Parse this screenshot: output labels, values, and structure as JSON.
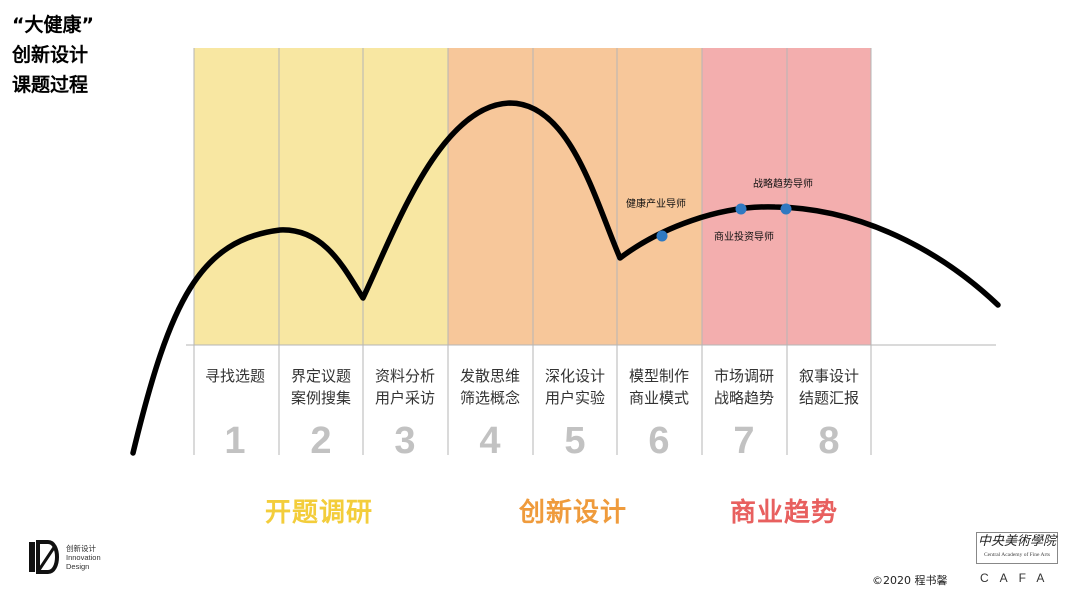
{
  "title": {
    "lines": [
      "“大健康”",
      "创新设计",
      "课题过程"
    ]
  },
  "colors": {
    "yellow": "#f8e7a2",
    "orange": "#f7c79a",
    "pink": "#f3aeae"
  },
  "steps": [
    {
      "number": "1",
      "line1": "寻找选题",
      "line2": ""
    },
    {
      "number": "2",
      "line1": "界定议题",
      "line2": "案例搜集"
    },
    {
      "number": "3",
      "line1": "资料分析",
      "line2": "用户采访"
    },
    {
      "number": "4",
      "line1": "发散思维",
      "line2": "筛选概念"
    },
    {
      "number": "5",
      "line1": "深化设计",
      "line2": "用户实验"
    },
    {
      "number": "6",
      "line1": "模型制作",
      "line2": "商业模式"
    },
    {
      "number": "7",
      "line1": "市场调研",
      "line2": "战略趋势"
    },
    {
      "number": "8",
      "line1": "叙事设计",
      "line2": "结题汇报"
    }
  ],
  "mentors": [
    {
      "label": "健康产业导师"
    },
    {
      "label": "战略趋势导师"
    },
    {
      "label": "商业投资导师"
    }
  ],
  "stages": [
    {
      "label": "开题调研",
      "color": "#f3cd3b"
    },
    {
      "label": "创新设计",
      "color": "#ef9b3c"
    },
    {
      "label": "商业趋势",
      "color": "#e8605f"
    }
  ],
  "footer": {
    "logo_text": [
      "创新设计",
      "Innovation",
      "Design"
    ],
    "copyright": "©2020 程书馨",
    "seal_cn": "中央美術學院",
    "seal_en": "Central Academy of Fine Arts",
    "cafa": "CAFA"
  }
}
